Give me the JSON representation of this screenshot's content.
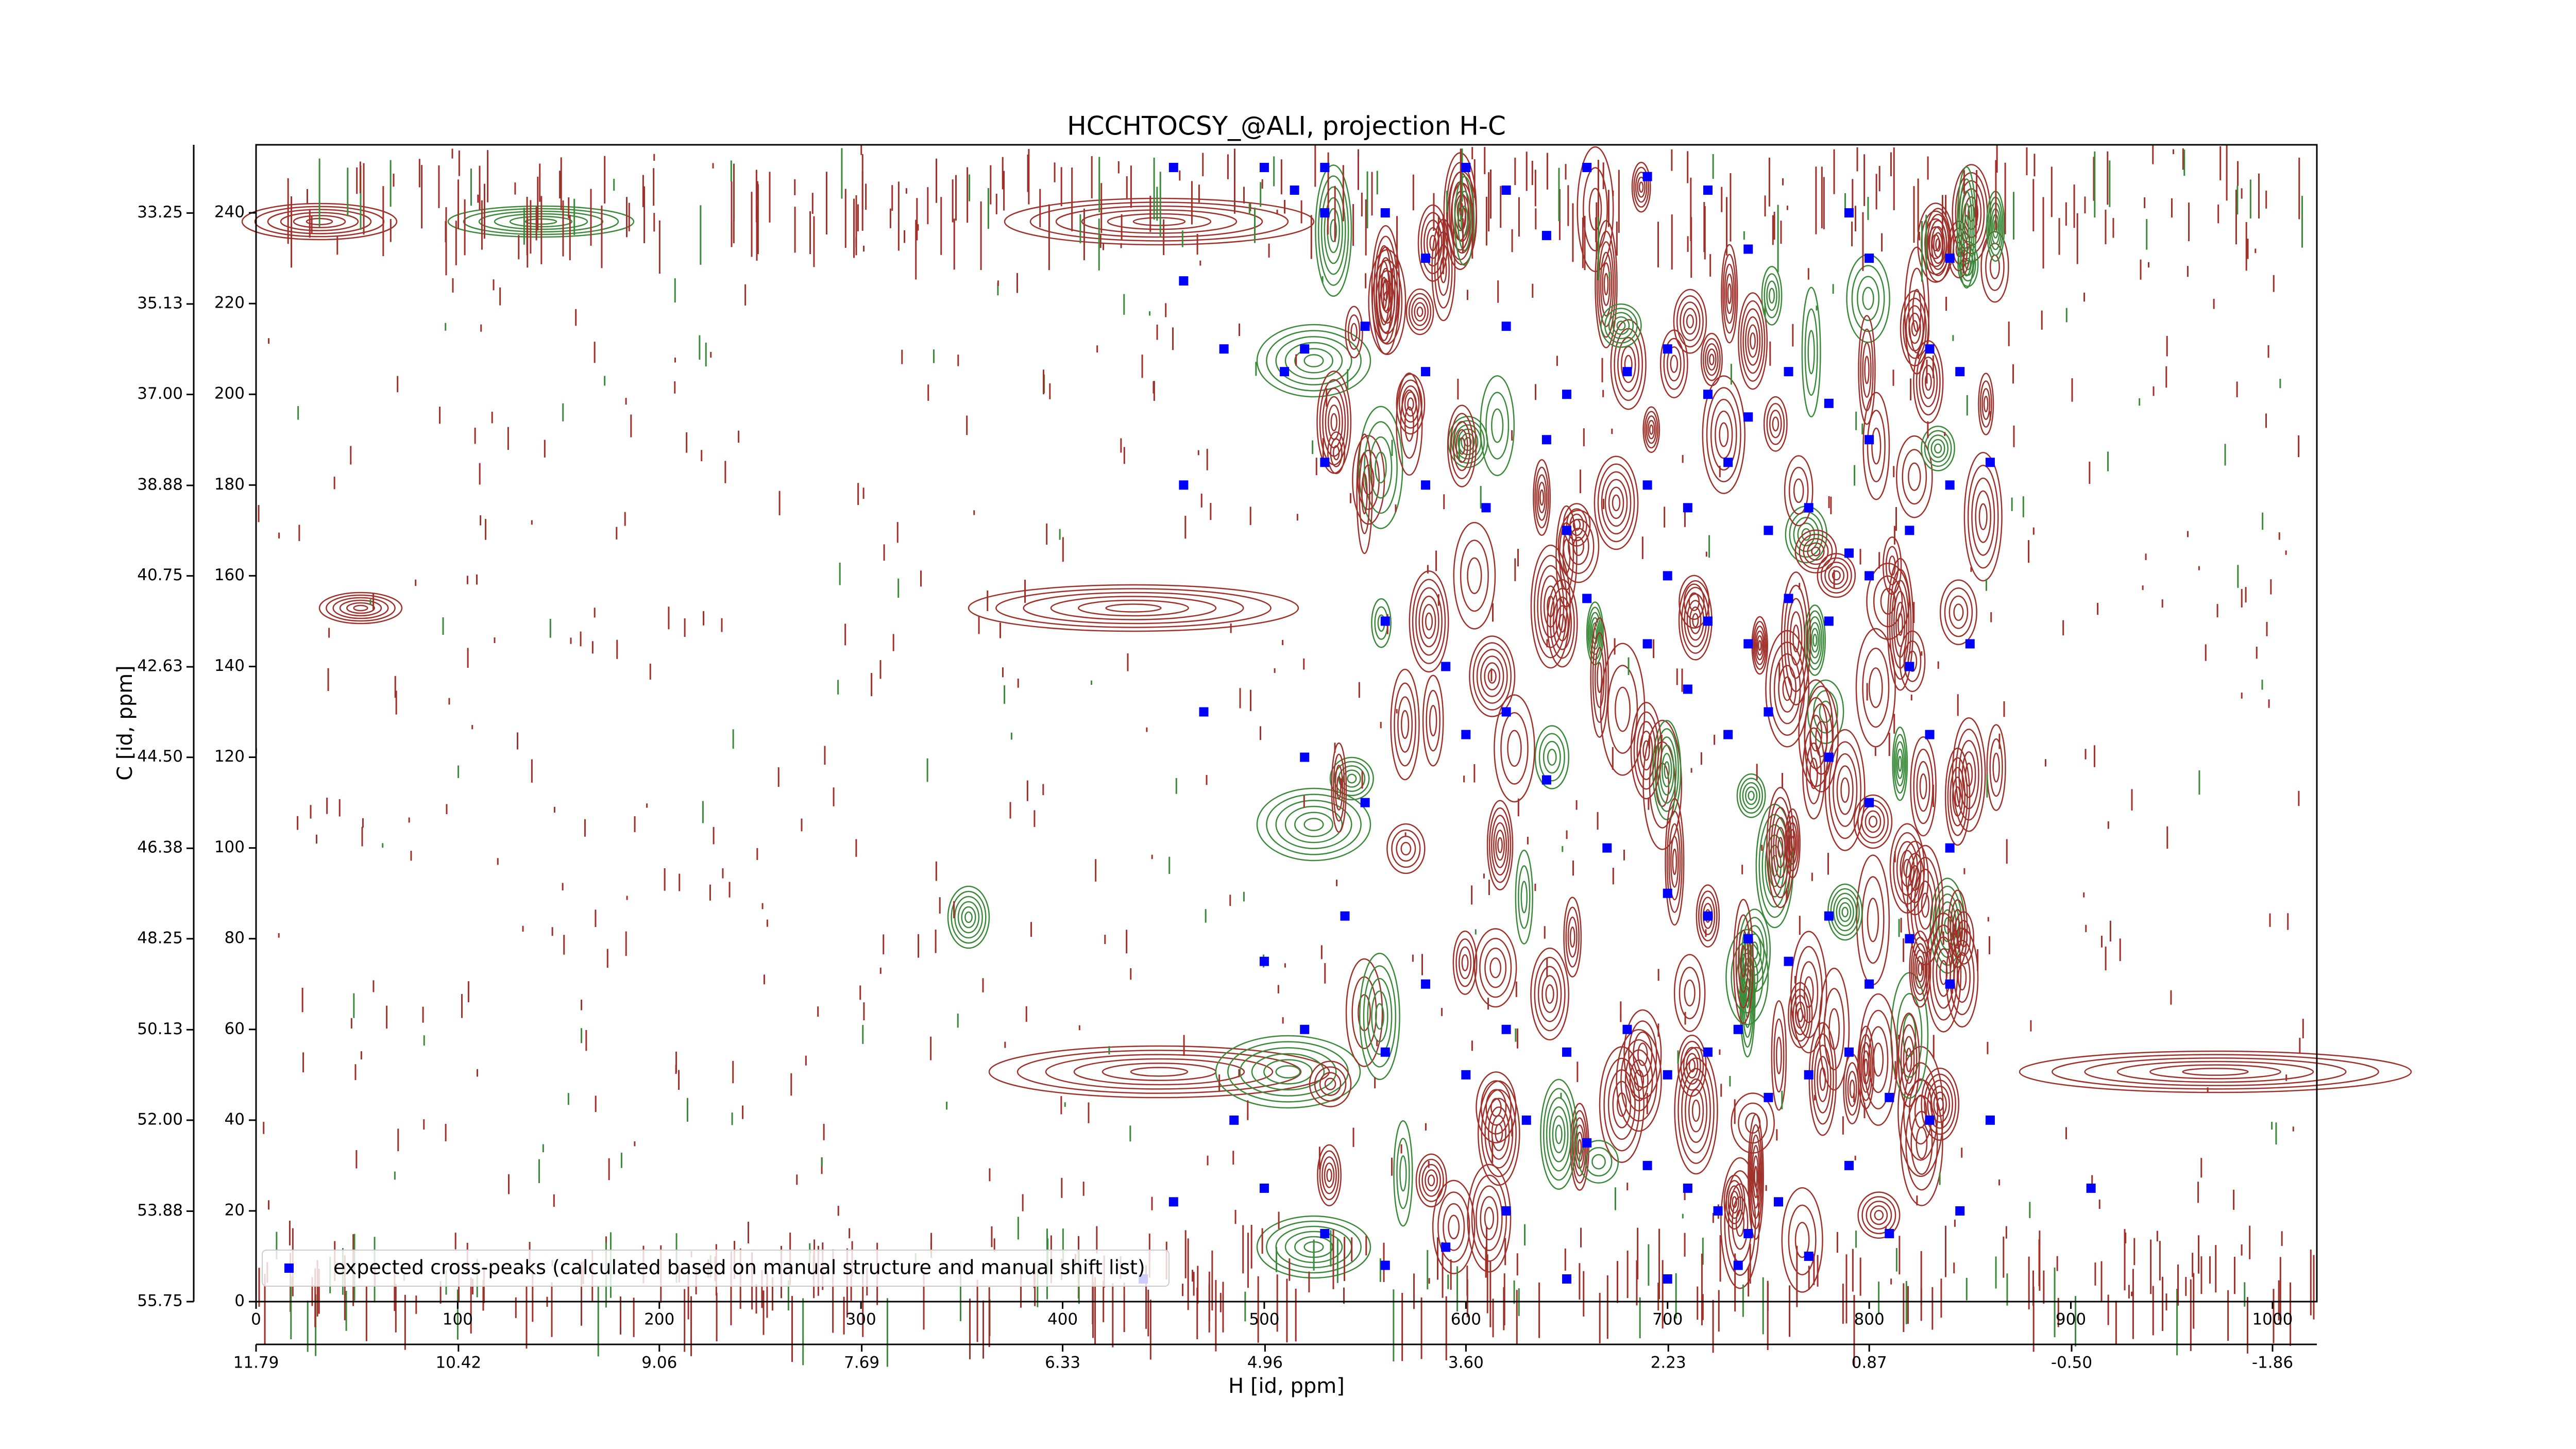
{
  "chart_data": {
    "type": "scatter",
    "title": "HCCHTOCSY_@ALI, projection H-C",
    "x_label": "H [id, ppm]",
    "y_label": "C [id, ppm]",
    "xlim": [
      0,
      1022
    ],
    "ylim": [
      0,
      255
    ],
    "xticks": [
      0,
      100,
      200,
      300,
      400,
      500,
      600,
      700,
      800,
      900,
      1000
    ],
    "yticks": [
      0,
      20,
      40,
      60,
      80,
      100,
      120,
      140,
      160,
      180,
      200,
      220,
      240
    ],
    "x2lim": [
      11.79,
      -2.16
    ],
    "x2ticks": [
      11.79,
      10.42,
      9.06,
      7.69,
      6.33,
      4.96,
      {
        "value": 3.6,
        "label": "3.60"
      },
      2.23,
      0.87,
      {
        "value": -0.5,
        "label": "-0.50"
      },
      -1.86
    ],
    "y2lim": [
      55.75,
      31.84
    ],
    "y2ticks": [
      55.75,
      53.88,
      {
        "value": 52,
        "label": "52.00"
      },
      50.13,
      48.25,
      46.38,
      {
        "value": 44.5,
        "label": "44.50"
      },
      42.63,
      40.75,
      38.88,
      {
        "value": 37,
        "label": "37.00"
      },
      35.13,
      33.25
    ],
    "legend": "lower left",
    "series": [
      {
        "name": "expected cross-peaks (calculated based on manual structure and manual shift list)",
        "color": "#0000ff",
        "x": [
          455,
          500,
          515,
          530,
          560,
          600,
          620,
          640,
          660,
          690,
          720,
          740,
          790,
          800,
          840,
          460,
          480,
          510,
          520,
          550,
          580,
          620,
          650,
          680,
          700,
          720,
          740,
          760,
          780,
          800,
          830,
          845,
          860,
          640,
          690,
          710,
          730,
          750,
          770,
          790,
          820,
          840,
          460,
          530,
          580,
          610,
          650,
          700,
          720,
          740,
          760,
          780,
          800,
          820,
          850,
          560,
          590,
          620,
          660,
          690,
          710,
          730,
          750,
          780,
          800,
          830,
          840,
          470,
          520,
          550,
          600,
          640,
          670,
          700,
          720,
          740,
          760,
          780,
          800,
          820,
          840,
          500,
          540,
          580,
          620,
          650,
          680,
          700,
          720,
          735,
          750,
          770,
          790,
          810,
          830,
          860,
          520,
          560,
          600,
          630,
          660,
          690,
          710,
          725,
          740,
          755,
          770,
          790,
          810,
          845,
          500,
          530,
          560,
          590,
          620,
          650,
          700,
          735,
          455,
          440,
          485,
          910,
          530,
          580
        ],
        "values": [
          250,
          250,
          245,
          240,
          240,
          250,
          245,
          235,
          250,
          248,
          245,
          232,
          240,
          230,
          230,
          225,
          210,
          205,
          210,
          215,
          205,
          215,
          200,
          205,
          210,
          200,
          195,
          205,
          198,
          190,
          210,
          205,
          185,
          190,
          180,
          175,
          185,
          170,
          175,
          165,
          170,
          180,
          180,
          185,
          180,
          175,
          170,
          160,
          150,
          145,
          155,
          150,
          160,
          140,
          145,
          150,
          140,
          130,
          155,
          145,
          135,
          125,
          130,
          120,
          110,
          125,
          100,
          130,
          120,
          110,
          125,
          115,
          100,
          90,
          85,
          80,
          75,
          85,
          70,
          80,
          70,
          75,
          85,
          70,
          60,
          55,
          60,
          50,
          55,
          60,
          45,
          50,
          55,
          45,
          40,
          40,
          60,
          55,
          50,
          40,
          35,
          30,
          25,
          20,
          15,
          22,
          10,
          30,
          15,
          20,
          25,
          15,
          8,
          12,
          20,
          5,
          5,
          8,
          22,
          5,
          40,
          25,
          250,
          230
        ]
      }
    ]
  }
}
